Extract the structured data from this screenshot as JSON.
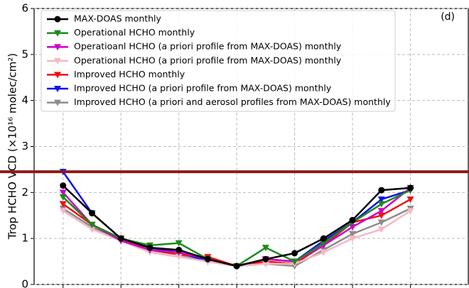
{
  "chart_data": {
    "type": "line",
    "ylabel": "Trop HCHO VCD (×10¹⁶ molec/cm²)",
    "annotation": "(d)",
    "x": [
      1,
      2,
      3,
      4,
      5,
      6,
      7,
      8,
      9,
      10,
      11,
      12,
      13
    ],
    "xlim": [
      0,
      15
    ],
    "xticks": [
      1,
      3,
      5,
      7,
      9,
      11,
      13
    ],
    "ylim": [
      0,
      6
    ],
    "yticks": [
      0,
      1,
      2,
      3,
      4,
      5,
      6
    ],
    "grid": true,
    "hline": {
      "value": 2.45,
      "color": "#8b1a1a"
    },
    "series": [
      {
        "name": "MAX-DOAS monthly",
        "color": "#000000",
        "marker": "circle",
        "values": [
          2.15,
          1.55,
          1.0,
          0.8,
          0.75,
          0.55,
          0.4,
          0.55,
          0.68,
          1.0,
          1.4,
          2.05,
          2.1
        ]
      },
      {
        "name": "Operational HCHO monthly",
        "color": "#1a8a1a",
        "marker": "triangle",
        "values": [
          1.9,
          1.3,
          1.0,
          0.85,
          0.9,
          0.55,
          0.4,
          0.8,
          0.5,
          0.9,
          1.35,
          1.75,
          2.05
        ]
      },
      {
        "name": "Operatioanl HCHO (a priori profile from MAX-DOAS) monthly",
        "color": "#cc00cc",
        "marker": "triangle",
        "values": [
          2.0,
          1.3,
          0.95,
          0.75,
          0.7,
          0.55,
          0.4,
          0.55,
          0.5,
          0.85,
          1.25,
          1.6,
          2.1
        ]
      },
      {
        "name": "Operational HCHO (a priori profile from MAX-DOAS) monthly",
        "color": "#f4b8c4",
        "marker": "triangle",
        "values": [
          1.6,
          1.2,
          0.95,
          0.7,
          0.6,
          0.5,
          0.4,
          0.45,
          0.45,
          0.7,
          1.0,
          1.2,
          1.6
        ]
      },
      {
        "name": "Improved HCHO monthly",
        "color": "#ee1111",
        "marker": "triangle",
        "values": [
          1.75,
          1.3,
          1.0,
          0.75,
          0.65,
          0.6,
          0.4,
          0.5,
          0.45,
          0.85,
          1.35,
          1.5,
          1.85
        ]
      },
      {
        "name": "Improved HCHO (a priori profile from MAX-DOAS) monthly",
        "color": "#1111ee",
        "marker": "triangle",
        "values": [
          2.45,
          1.55,
          1.0,
          0.8,
          0.7,
          0.5,
          0.4,
          0.55,
          0.5,
          0.95,
          1.35,
          1.85,
          2.05
        ]
      },
      {
        "name": "Improved HCHO (a priori and aerosol profiles from MAX-DOAS) monthly",
        "color": "#8c8c8c",
        "marker": "triangle",
        "values": [
          1.65,
          1.25,
          0.95,
          0.75,
          0.65,
          0.5,
          0.4,
          0.45,
          0.4,
          0.75,
          1.1,
          1.35,
          1.65
        ]
      }
    ]
  }
}
